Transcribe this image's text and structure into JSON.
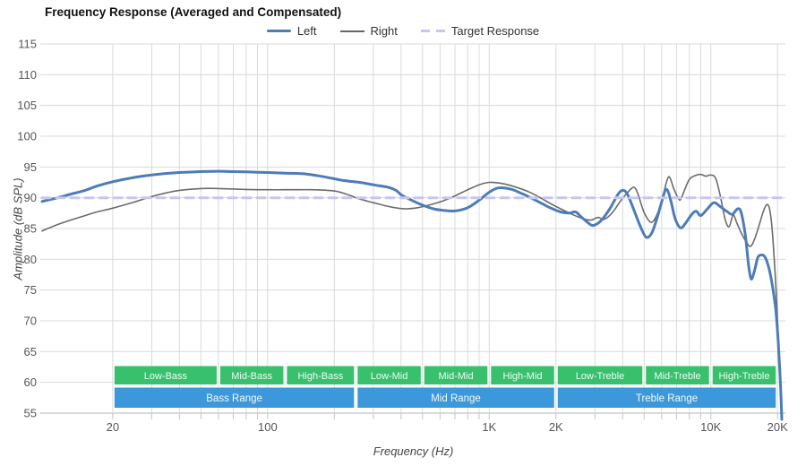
{
  "header": {
    "title": "Frequency Response (Averaged and Compensated)"
  },
  "legend": [
    {
      "label": "Left",
      "type": "solid",
      "color": "#4d7cb7"
    },
    {
      "label": "Right",
      "type": "solid",
      "color": "#666666"
    },
    {
      "label": "Target Response",
      "type": "dashed",
      "color": "#c7c5f1"
    }
  ],
  "chart_data": {
    "type": "line",
    "title": "Frequency Response (Averaged and Compensated)",
    "xlabel": "Frequency (Hz)",
    "ylabel": "Amplitude (dB SPL)",
    "xscale": "log",
    "xlim": [
      9.6,
      21500
    ],
    "ylim": [
      55,
      115
    ],
    "yticks": [
      55,
      60,
      65,
      70,
      75,
      80,
      85,
      90,
      95,
      100,
      105,
      110,
      115
    ],
    "xticks": [
      {
        "value": 20,
        "label": "20"
      },
      {
        "value": 100,
        "label": "100"
      },
      {
        "value": 1000,
        "label": "1K"
      },
      {
        "value": 2000,
        "label": "2K"
      },
      {
        "value": 10000,
        "label": "10K"
      },
      {
        "value": 20000,
        "label": "20K"
      }
    ],
    "grid_freqs": [
      20,
      30,
      40,
      50,
      60,
      70,
      80,
      90,
      100,
      200,
      300,
      400,
      500,
      600,
      700,
      800,
      900,
      1000,
      2000,
      3000,
      4000,
      5000,
      6000,
      7000,
      8000,
      9000,
      10000,
      20000
    ],
    "grid_color": "#dadada",
    "axis_line_color": "#b3b3b3",
    "tick_color": "#c4c4c4",
    "label_color": "#555555",
    "series": [
      {
        "name": "Left",
        "color": "#4d7cb7",
        "width": 3,
        "points": [
          [
            9.6,
            89.4
          ],
          [
            11,
            89.9
          ],
          [
            13,
            90.6
          ],
          [
            15,
            91.2
          ],
          [
            17,
            91.9
          ],
          [
            20,
            92.6
          ],
          [
            25,
            93.3
          ],
          [
            30,
            93.7
          ],
          [
            35,
            93.95
          ],
          [
            40,
            94.1
          ],
          [
            50,
            94.25
          ],
          [
            60,
            94.3
          ],
          [
            70,
            94.25
          ],
          [
            80,
            94.2
          ],
          [
            100,
            94.1
          ],
          [
            120,
            94.0
          ],
          [
            150,
            93.85
          ],
          [
            180,
            93.4
          ],
          [
            220,
            92.8
          ],
          [
            260,
            92.5
          ],
          [
            300,
            92.1
          ],
          [
            350,
            91.7
          ],
          [
            380,
            91.2
          ],
          [
            400,
            90.5
          ],
          [
            440,
            89.7
          ],
          [
            500,
            88.8
          ],
          [
            560,
            88.2
          ],
          [
            620,
            87.95
          ],
          [
            700,
            87.85
          ],
          [
            800,
            88.4
          ],
          [
            900,
            89.6
          ],
          [
            1000,
            90.9
          ],
          [
            1100,
            91.6
          ],
          [
            1250,
            91.4
          ],
          [
            1400,
            90.7
          ],
          [
            1500,
            90.2
          ],
          [
            1700,
            89.2
          ],
          [
            1900,
            88.3
          ],
          [
            2100,
            87.7
          ],
          [
            2300,
            87.5
          ],
          [
            2450,
            87.7
          ],
          [
            2600,
            86.9
          ],
          [
            2800,
            85.9
          ],
          [
            2950,
            85.5
          ],
          [
            3200,
            86.3
          ],
          [
            3500,
            88.2
          ],
          [
            3800,
            90.5
          ],
          [
            4000,
            91.2
          ],
          [
            4200,
            90.6
          ],
          [
            4500,
            88.0
          ],
          [
            4800,
            85.4
          ],
          [
            5100,
            83.6
          ],
          [
            5400,
            84.2
          ],
          [
            5700,
            86.5
          ],
          [
            6000,
            89.3
          ],
          [
            6300,
            91.4
          ],
          [
            6600,
            89.5
          ],
          [
            6900,
            86.6
          ],
          [
            7300,
            85.1
          ],
          [
            7700,
            85.9
          ],
          [
            8200,
            87.3
          ],
          [
            8600,
            87.8
          ],
          [
            9000,
            87.1
          ],
          [
            9600,
            88.1
          ],
          [
            10300,
            89.2
          ],
          [
            11000,
            88.6
          ],
          [
            11800,
            87.8
          ],
          [
            12500,
            87.3
          ],
          [
            13200,
            88.2
          ],
          [
            13700,
            87.6
          ],
          [
            14300,
            84.0
          ],
          [
            14800,
            79.0
          ],
          [
            15200,
            76.8
          ],
          [
            15700,
            78.0
          ],
          [
            16300,
            80.3
          ],
          [
            17000,
            80.7
          ],
          [
            17600,
            80.3
          ],
          [
            18300,
            78.5
          ],
          [
            19000,
            75.5
          ],
          [
            19600,
            72.0
          ],
          [
            20100,
            67.0
          ],
          [
            20600,
            60.0
          ],
          [
            20900,
            54.0
          ]
        ]
      },
      {
        "name": "Right",
        "color": "#6b6b6b",
        "width": 1.6,
        "points": [
          [
            9.6,
            84.6
          ],
          [
            11,
            85.5
          ],
          [
            13,
            86.4
          ],
          [
            15,
            87.1
          ],
          [
            17,
            87.7
          ],
          [
            20,
            88.3
          ],
          [
            25,
            89.3
          ],
          [
            30,
            90.2
          ],
          [
            35,
            90.8
          ],
          [
            40,
            91.2
          ],
          [
            50,
            91.5
          ],
          [
            60,
            91.5
          ],
          [
            80,
            91.35
          ],
          [
            100,
            91.3
          ],
          [
            130,
            91.3
          ],
          [
            160,
            91.3
          ],
          [
            200,
            91.1
          ],
          [
            230,
            90.5
          ],
          [
            260,
            89.8
          ],
          [
            300,
            89.2
          ],
          [
            340,
            88.7
          ],
          [
            380,
            88.35
          ],
          [
            420,
            88.2
          ],
          [
            460,
            88.3
          ],
          [
            500,
            88.55
          ],
          [
            560,
            89.0
          ],
          [
            620,
            89.5
          ],
          [
            700,
            90.3
          ],
          [
            800,
            91.3
          ],
          [
            900,
            92.1
          ],
          [
            1000,
            92.5
          ],
          [
            1150,
            92.3
          ],
          [
            1300,
            91.8
          ],
          [
            1500,
            91.0
          ],
          [
            1700,
            90.0
          ],
          [
            1900,
            89.0
          ],
          [
            2100,
            88.2
          ],
          [
            2400,
            87.2
          ],
          [
            2700,
            86.5
          ],
          [
            2900,
            86.4
          ],
          [
            3100,
            86.8
          ],
          [
            3300,
            86.5
          ],
          [
            3600,
            87.6
          ],
          [
            3900,
            89.4
          ],
          [
            4200,
            90.8
          ],
          [
            4500,
            91.7
          ],
          [
            4700,
            90.5
          ],
          [
            5000,
            87.6
          ],
          [
            5400,
            86.0
          ],
          [
            5800,
            87.8
          ],
          [
            6100,
            90.5
          ],
          [
            6450,
            93.4
          ],
          [
            6800,
            91.5
          ],
          [
            7100,
            90.0
          ],
          [
            7300,
            89.7
          ],
          [
            7600,
            91.2
          ],
          [
            8000,
            93.0
          ],
          [
            8500,
            93.6
          ],
          [
            9000,
            93.8
          ],
          [
            9500,
            93.5
          ],
          [
            10000,
            93.7
          ],
          [
            10500,
            93.2
          ],
          [
            11000,
            90.5
          ],
          [
            11600,
            86.5
          ],
          [
            12100,
            85.3
          ],
          [
            12600,
            87.2
          ],
          [
            13100,
            85.9
          ],
          [
            13700,
            84.3
          ],
          [
            14400,
            82.9
          ],
          [
            15100,
            82.1
          ],
          [
            15800,
            83.4
          ],
          [
            16600,
            85.8
          ],
          [
            17300,
            87.9
          ],
          [
            17900,
            88.9
          ],
          [
            18400,
            88.2
          ],
          [
            18900,
            85.0
          ],
          [
            19400,
            79.0
          ],
          [
            19800,
            73.5
          ],
          [
            20300,
            65.0
          ],
          [
            20800,
            55.5
          ]
        ]
      },
      {
        "name": "Target Response",
        "color": "#c7c5f1",
        "width": 3,
        "dash": "9 7",
        "points": [
          [
            9.6,
            90
          ],
          [
            21500,
            90
          ]
        ]
      }
    ],
    "bands": {
      "sub_color": "#38c06c",
      "main_color": "#3c98db",
      "text_color": "#f2faf5",
      "sub": [
        {
          "label": "Low-Bass",
          "from": 20,
          "to": 60
        },
        {
          "label": "Mid-Bass",
          "from": 60,
          "to": 120
        },
        {
          "label": "High-Bass",
          "from": 120,
          "to": 250
        },
        {
          "label": "Low-Mid",
          "from": 250,
          "to": 500
        },
        {
          "label": "Mid-Mid",
          "from": 500,
          "to": 1000
        },
        {
          "label": "High-Mid",
          "from": 1000,
          "to": 2000
        },
        {
          "label": "Low-Treble",
          "from": 2000,
          "to": 5000
        },
        {
          "label": "Mid-Treble",
          "from": 5000,
          "to": 10000
        },
        {
          "label": "High-Treble",
          "from": 10000,
          "to": 20000
        }
      ],
      "main": [
        {
          "label": "Bass Range",
          "from": 20,
          "to": 250
        },
        {
          "label": "Mid Range",
          "from": 250,
          "to": 2000
        },
        {
          "label": "Treble Range",
          "from": 2000,
          "to": 20000
        }
      ]
    }
  }
}
